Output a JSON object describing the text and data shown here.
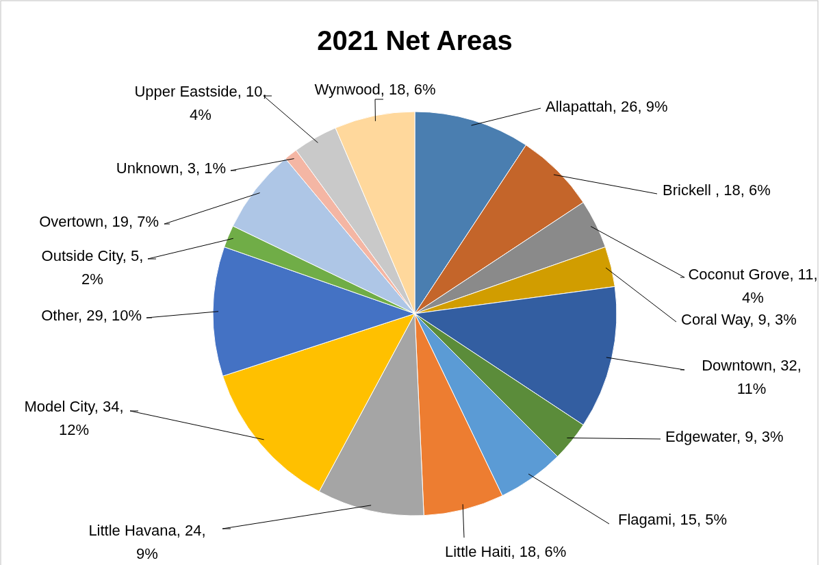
{
  "chart_data": {
    "type": "pie",
    "title": "2021 Net Areas",
    "categories": [
      "Allapattah",
      "Brickell ",
      "Coconut Grove",
      "Coral Way",
      "Downtown",
      "Edgewater",
      "Flagami",
      "Little Haiti",
      "Little Havana",
      "Model City",
      "Other",
      "Outside City",
      "Overtown",
      "Unknown",
      "Upper Eastside",
      "Wynwood"
    ],
    "values": [
      26,
      18,
      11,
      9,
      32,
      9,
      15,
      18,
      24,
      34,
      29,
      5,
      19,
      3,
      10,
      18
    ],
    "value_labels": [
      "26, 9%",
      "18, 6%",
      "11, 4%",
      "9, 3%",
      "32, 11%",
      "9, 3%",
      "15, 5%",
      "18, 6%",
      "24, 9%",
      "34, 12%",
      "29, 10%",
      "5, 2%",
      "19, 7%",
      "3, 1%",
      "10, 4%",
      "18, 6%"
    ],
    "colors": [
      "#4a7eb0",
      "#c4652a",
      "#8a8a8a",
      "#d19d00",
      "#335ea1",
      "#5b8c3a",
      "#5b9bd5",
      "#ed7d31",
      "#a5a5a5",
      "#ffc000",
      "#4472c4",
      "#70ad47",
      "#aec6e6",
      "#f4b6a4",
      "#c9c9c9",
      "#ffd89c"
    ]
  }
}
